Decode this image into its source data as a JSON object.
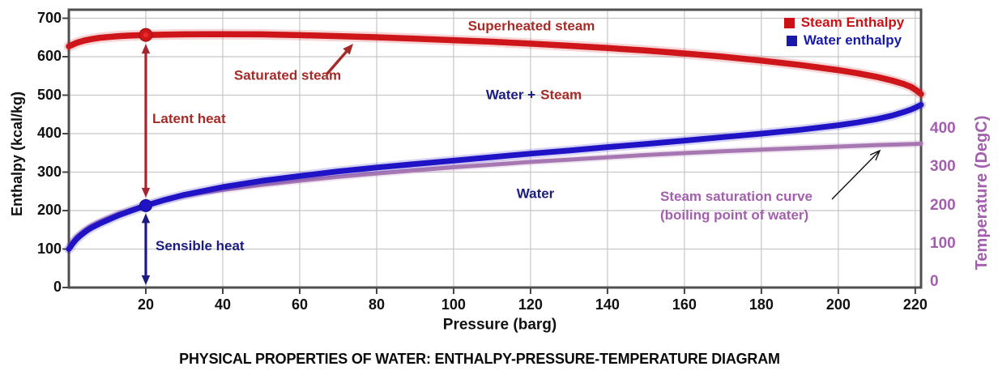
{
  "colors": {
    "steam_red": "#ce1519",
    "water_blue": "#2013c6",
    "sat_purple": "#a777b2",
    "dark_red": "#a62b27",
    "navy": "#1b1b80",
    "legend_red": "#cb1114",
    "legend_blue": "#1a1aa8",
    "purple_text": "#a35fae",
    "grid": "#c7c7c7",
    "frame": "#4f4f4f",
    "arrow_red": "#a4262e",
    "pointer_black": "#111111"
  },
  "chart_data": {
    "type": "line",
    "title": "PHYSICAL PROPERTIES OF WATER: ENTHALPY-PRESSURE-TEMPERATURE DIAGRAM",
    "xlabel": "Pressure (barg)",
    "ylabel_left": "Enthalpy (kcal/kg)",
    "ylabel_right": "Temperature (DegC)",
    "xlim": [
      0,
      221.5
    ],
    "ylim_left": [
      0,
      722
    ],
    "ylim_right": [
      0,
      726
    ],
    "grid": true,
    "x_ticks": [
      20,
      40,
      60,
      80,
      100,
      120,
      140,
      160,
      180,
      200,
      220
    ],
    "y_ticks_left": [
      0,
      100,
      200,
      300,
      400,
      500,
      600,
      700
    ],
    "y_ticks_right": [
      0,
      100,
      200,
      300,
      400
    ],
    "legend": {
      "position": "top-right",
      "entries": [
        {
          "label": "Steam Enthalpy",
          "color": "#cb1114"
        },
        {
          "label": "Water enthalpy",
          "color": "#1a1aa8"
        }
      ]
    },
    "series": [
      {
        "name": "Steam saturation curve (boiling point of water)",
        "axis": "right",
        "color": "#a777b2",
        "points": [
          [
            0,
            100
          ],
          [
            1,
            116
          ],
          [
            2,
            128
          ],
          [
            3,
            137
          ],
          [
            4,
            145
          ],
          [
            5,
            152
          ],
          [
            6,
            158
          ],
          [
            8,
            168
          ],
          [
            10,
            177
          ],
          [
            13,
            189
          ],
          [
            16,
            199
          ],
          [
            20,
            212
          ],
          [
            25,
            225
          ],
          [
            30,
            235
          ],
          [
            35,
            244
          ],
          [
            40,
            251
          ],
          [
            50,
            264
          ],
          [
            60,
            275
          ],
          [
            70,
            285
          ],
          [
            80,
            294
          ],
          [
            90,
            302
          ],
          [
            100,
            310
          ],
          [
            110,
            317
          ],
          [
            120,
            324
          ],
          [
            130,
            330
          ],
          [
            140,
            336
          ],
          [
            150,
            342
          ],
          [
            160,
            347
          ],
          [
            170,
            352
          ],
          [
            180,
            356
          ],
          [
            190,
            360
          ],
          [
            200,
            364
          ],
          [
            210,
            368
          ],
          [
            220,
            371
          ],
          [
            221.5,
            372
          ]
        ]
      },
      {
        "name": "Water enthalpy",
        "axis": "left",
        "color": "#2013c6",
        "points": [
          [
            0,
            100
          ],
          [
            1,
            114
          ],
          [
            2,
            126
          ],
          [
            3,
            135
          ],
          [
            4,
            143
          ],
          [
            5,
            150
          ],
          [
            6,
            156
          ],
          [
            8,
            166
          ],
          [
            10,
            175
          ],
          [
            13,
            188
          ],
          [
            16,
            199
          ],
          [
            20,
            213
          ],
          [
            25,
            228
          ],
          [
            30,
            241
          ],
          [
            35,
            251
          ],
          [
            40,
            261
          ],
          [
            50,
            277
          ],
          [
            60,
            290
          ],
          [
            70,
            302
          ],
          [
            80,
            312
          ],
          [
            90,
            321
          ],
          [
            100,
            330
          ],
          [
            110,
            339
          ],
          [
            120,
            348
          ],
          [
            130,
            356
          ],
          [
            140,
            365
          ],
          [
            150,
            373
          ],
          [
            160,
            382
          ],
          [
            170,
            391
          ],
          [
            180,
            400
          ],
          [
            190,
            410
          ],
          [
            200,
            422
          ],
          [
            205,
            429
          ],
          [
            210,
            438
          ],
          [
            214,
            447
          ],
          [
            217,
            456
          ],
          [
            219,
            463
          ],
          [
            220.5,
            470
          ],
          [
            221.5,
            475
          ]
        ]
      },
      {
        "name": "Steam Enthalpy",
        "axis": "left",
        "color": "#ce1519",
        "points": [
          [
            0,
            627
          ],
          [
            2,
            636
          ],
          [
            4,
            642
          ],
          [
            6,
            646
          ],
          [
            8,
            649
          ],
          [
            10,
            651
          ],
          [
            13,
            653.5
          ],
          [
            16,
            655
          ],
          [
            20,
            656.5
          ],
          [
            25,
            657.5
          ],
          [
            30,
            658
          ],
          [
            40,
            658.5
          ],
          [
            50,
            658
          ],
          [
            60,
            656
          ],
          [
            70,
            653.5
          ],
          [
            80,
            650.5
          ],
          [
            90,
            647
          ],
          [
            100,
            643
          ],
          [
            110,
            639
          ],
          [
            120,
            634
          ],
          [
            130,
            628.5
          ],
          [
            140,
            622.5
          ],
          [
            150,
            616
          ],
          [
            160,
            608.5
          ],
          [
            170,
            600
          ],
          [
            180,
            590
          ],
          [
            190,
            578.5
          ],
          [
            200,
            565
          ],
          [
            205,
            557
          ],
          [
            210,
            547.5
          ],
          [
            214,
            538
          ],
          [
            217,
            529
          ],
          [
            219,
            521
          ],
          [
            220.5,
            511
          ],
          [
            221.5,
            503
          ]
        ]
      }
    ],
    "markers": {
      "pressure": 20,
      "steam_enthalpy": 656.5,
      "water_enthalpy": 213
    },
    "annotations": {
      "superheated": {
        "text": "Superheated steam"
      },
      "saturated": {
        "text": "Saturated steam"
      },
      "latent": {
        "text": "Latent heat"
      },
      "water_steam": {
        "part1": "Water +",
        "part2": "Steam"
      },
      "water": {
        "text": "Water"
      },
      "sensible": {
        "text": "Sensible heat"
      },
      "sat_curve": {
        "line1": "Steam saturation curve",
        "line2": "(boiling point of water)"
      }
    }
  }
}
